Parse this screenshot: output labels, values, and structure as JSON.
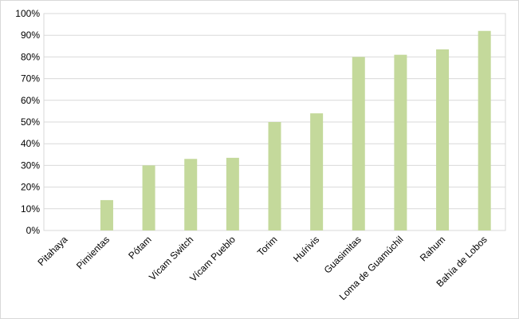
{
  "chart_data": {
    "type": "bar",
    "categories": [
      "Pitahaya",
      "Pimientas",
      "Pótam",
      "Vícam Switch",
      "Vícam Pueblo",
      "Torim",
      "Huírivis",
      "Guasimitas",
      "Loma de Guamúchil",
      "Rahum",
      "Bahía de Lobos"
    ],
    "values": [
      0,
      14,
      30,
      33,
      33.5,
      50,
      54,
      80,
      81,
      83.5,
      92
    ],
    "color": "#c4d99b",
    "ylim": [
      0,
      100
    ],
    "yticks": [
      {
        "value": 0,
        "label": "0%"
      },
      {
        "value": 10,
        "label": "10%"
      },
      {
        "value": 20,
        "label": "20%"
      },
      {
        "value": 30,
        "label": "30%"
      },
      {
        "value": 40,
        "label": "40%"
      },
      {
        "value": 50,
        "label": "50%"
      },
      {
        "value": 60,
        "label": "60%"
      },
      {
        "value": 70,
        "label": "70%"
      },
      {
        "value": 80,
        "label": "80%"
      },
      {
        "value": 90,
        "label": "90%"
      },
      {
        "value": 100,
        "label": "100%"
      }
    ],
    "grid": true
  }
}
